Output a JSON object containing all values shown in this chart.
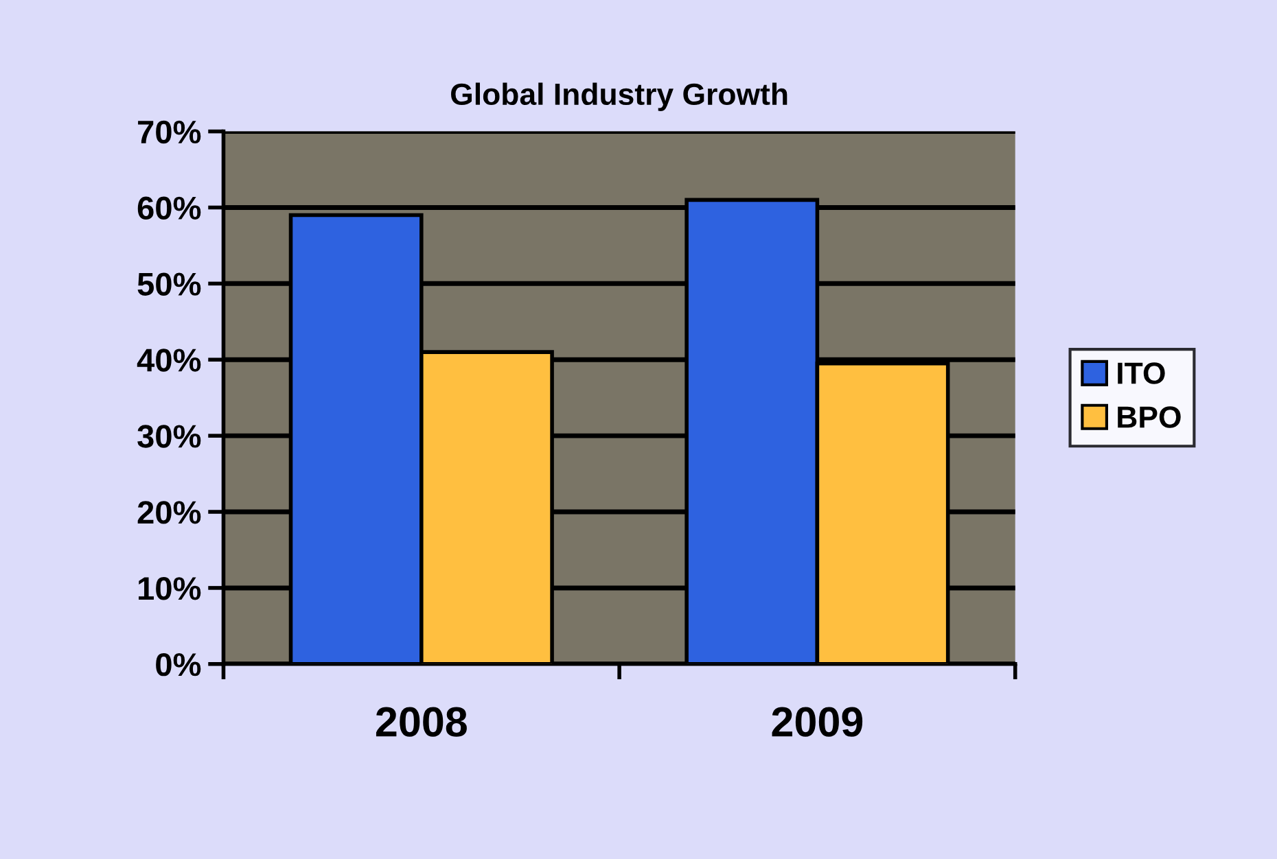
{
  "chart_data": {
    "type": "bar",
    "title": "Global Industry Growth",
    "categories": [
      "2008",
      "2009"
    ],
    "series": [
      {
        "name": "ITO",
        "color": "#2e62e0",
        "values": [
          59,
          61
        ]
      },
      {
        "name": "BPO",
        "color": "#ffbf40",
        "values": [
          41,
          39.5
        ]
      }
    ],
    "ylim": [
      0,
      70
    ],
    "yticks": [
      {
        "value": 0,
        "label": "0%"
      },
      {
        "value": 10,
        "label": "10%"
      },
      {
        "value": 20,
        "label": "20%"
      },
      {
        "value": 30,
        "label": "30%"
      },
      {
        "value": 40,
        "label": "40%"
      },
      {
        "value": 50,
        "label": "50%"
      },
      {
        "value": 60,
        "label": "60%"
      },
      {
        "value": 70,
        "label": "70%"
      }
    ],
    "grid": "y",
    "legend": "right"
  }
}
